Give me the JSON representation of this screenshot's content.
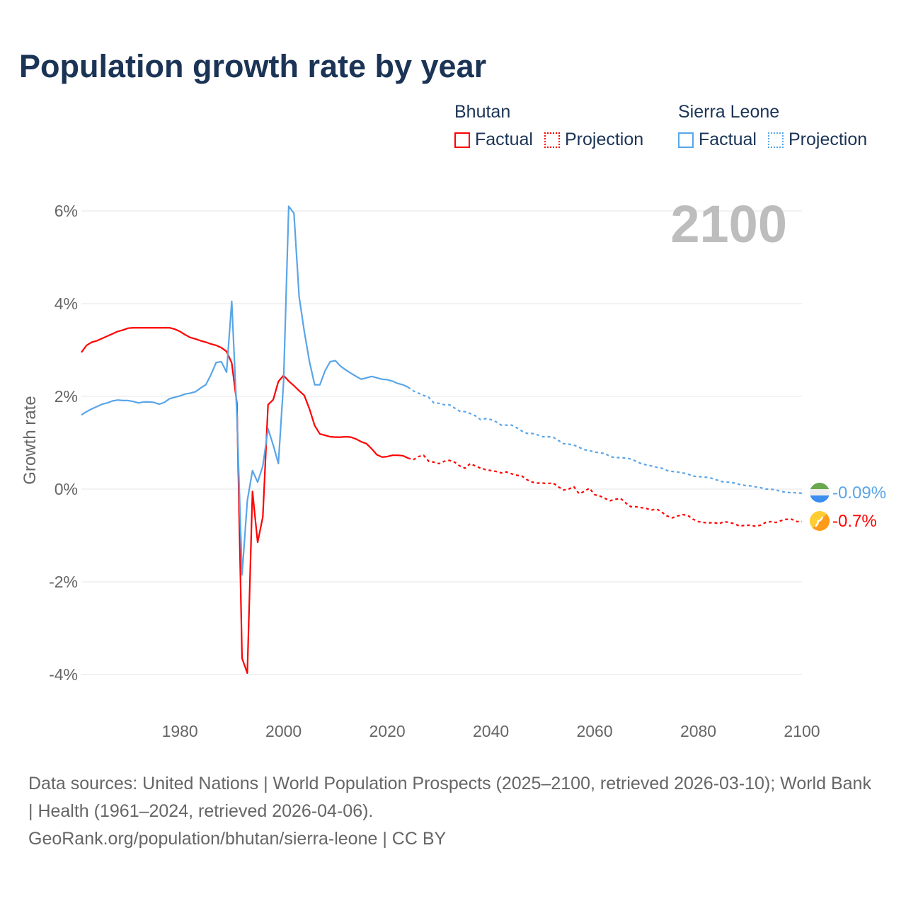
{
  "title": "Population growth rate by year",
  "legend": {
    "groups": [
      {
        "name": "Bhutan",
        "factual": "Factual",
        "projection": "Projection",
        "color": "#ff0000"
      },
      {
        "name": "Sierra Leone",
        "factual": "Factual",
        "projection": "Projection",
        "color": "#5aa5e8"
      }
    ]
  },
  "year_display": "2100",
  "end_labels": {
    "sierra_leone": "-0.09%",
    "bhutan": "-0.7%"
  },
  "footer": {
    "line1": "Data sources: United Nations | World Population Prospects (2025–2100, retrieved 2026-03-10); World Bank | Health (1961–2024, retrieved 2026-04-06).",
    "line2": "GeoRank.org/population/bhutan/sierra-leone | CC BY"
  },
  "chart_data": {
    "type": "line",
    "title": "Population growth rate by year",
    "xlabel": "",
    "ylabel": "Growth rate",
    "xlim": [
      1961,
      2100
    ],
    "ylim": [
      -4,
      6
    ],
    "y_ticks": [
      6,
      4,
      2,
      0,
      -2,
      -4
    ],
    "y_tick_labels": [
      "6%",
      "4%",
      "2%",
      "0%",
      "-2%",
      "-4%"
    ],
    "x_ticks": [
      1980,
      2000,
      2020,
      2040,
      2060,
      2080,
      2100
    ],
    "x_tick_labels": [
      "1980",
      "2000",
      "2020",
      "2040",
      "2060",
      "2080",
      "2100"
    ],
    "grid": true,
    "legend_position": "top-right",
    "series": [
      {
        "name": "Bhutan",
        "color": "#ff0000",
        "factual_start": 1961,
        "factual": [
          2.95,
          3.1,
          3.17,
          3.2,
          3.25,
          3.3,
          3.35,
          3.4,
          3.43,
          3.47,
          3.48,
          3.48,
          3.48,
          3.48,
          3.48,
          3.48,
          3.48,
          3.48,
          3.45,
          3.4,
          3.33,
          3.27,
          3.24,
          3.2,
          3.17,
          3.13,
          3.1,
          3.05,
          2.97,
          2.72,
          1.85,
          -3.65,
          -3.97,
          -0.05,
          -1.15,
          -0.6,
          1.82,
          1.93,
          2.32,
          2.45,
          2.33,
          2.23,
          2.12,
          2.02,
          1.73,
          1.37,
          1.19,
          1.16,
          1.13,
          1.12,
          1.12,
          1.13,
          1.12,
          1.08,
          1.02,
          0.98,
          0.87,
          0.74,
          0.69,
          0.7,
          0.73,
          0.73,
          0.72,
          0.67
        ],
        "projection_start": 2025,
        "projection": [
          0.63,
          0.7,
          0.73,
          0.6,
          0.58,
          0.55,
          0.6,
          0.62,
          0.58,
          0.5,
          0.45,
          0.55,
          0.5,
          0.45,
          0.42,
          0.4,
          0.38,
          0.35,
          0.37,
          0.33,
          0.3,
          0.28,
          0.2,
          0.15,
          0.13,
          0.13,
          0.12,
          0.13,
          0.05,
          -0.02,
          0,
          0.05,
          -0.1,
          -0.05,
          0.02,
          -0.12,
          -0.15,
          -0.2,
          -0.25,
          -0.22,
          -0.2,
          -0.3,
          -0.38,
          -0.38,
          -0.4,
          -0.42,
          -0.45,
          -0.43,
          -0.5,
          -0.58,
          -0.62,
          -0.58,
          -0.55,
          -0.57,
          -0.65,
          -0.7,
          -0.72,
          -0.73,
          -0.72,
          -0.75,
          -0.7,
          -0.72,
          -0.75,
          -0.8,
          -0.78,
          -0.78,
          -0.8,
          -0.78,
          -0.72,
          -0.7,
          -0.72,
          -0.68,
          -0.65,
          -0.65,
          -0.7,
          -0.7
        ]
      },
      {
        "name": "Sierra Leone",
        "color": "#5aa5e8",
        "factual_start": 1961,
        "factual": [
          1.6,
          1.67,
          1.73,
          1.78,
          1.83,
          1.86,
          1.9,
          1.92,
          1.91,
          1.91,
          1.89,
          1.86,
          1.88,
          1.88,
          1.87,
          1.83,
          1.87,
          1.95,
          1.98,
          2.01,
          2.05,
          2.07,
          2.1,
          2.18,
          2.25,
          2.47,
          2.73,
          2.75,
          2.52,
          4.05,
          1.6,
          -1.85,
          -0.25,
          0.4,
          0.15,
          0.5,
          1.3,
          0.95,
          0.55,
          2.3,
          6.1,
          5.95,
          4.15,
          3.4,
          2.75,
          2.25,
          2.25,
          2.55,
          2.75,
          2.77,
          2.65,
          2.57,
          2.5,
          2.43,
          2.37,
          2.4,
          2.43,
          2.4,
          2.37,
          2.36,
          2.33,
          2.28,
          2.25,
          2.2
        ],
        "projection_start": 2025,
        "projection": [
          2.12,
          2.07,
          2.02,
          1.98,
          1.86,
          1.85,
          1.82,
          1.82,
          1.75,
          1.68,
          1.67,
          1.63,
          1.58,
          1.5,
          1.52,
          1.5,
          1.45,
          1.38,
          1.38,
          1.38,
          1.32,
          1.25,
          1.2,
          1.2,
          1.17,
          1.13,
          1.13,
          1.12,
          1.05,
          0.98,
          0.97,
          0.95,
          0.9,
          0.85,
          0.83,
          0.8,
          0.78,
          0.77,
          0.7,
          0.68,
          0.68,
          0.67,
          0.65,
          0.6,
          0.55,
          0.52,
          0.5,
          0.47,
          0.45,
          0.4,
          0.38,
          0.37,
          0.35,
          0.32,
          0.28,
          0.27,
          0.26,
          0.25,
          0.22,
          0.18,
          0.15,
          0.15,
          0.13,
          0.1,
          0.08,
          0.07,
          0.05,
          0.03,
          0,
          0,
          -0.02,
          -0.05,
          -0.07,
          -0.08,
          -0.08,
          -0.09
        ]
      }
    ]
  }
}
